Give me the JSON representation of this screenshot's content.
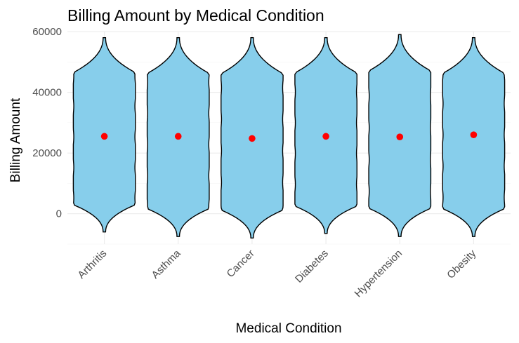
{
  "chart_data": {
    "type": "violin",
    "title": "Billing Amount by Medical Condition",
    "xlabel": "Medical Condition",
    "ylabel": "Billing Amount",
    "categories": [
      "Arthritis",
      "Asthma",
      "Cancer",
      "Diabetes",
      "Hypertension",
      "Obesity"
    ],
    "ylim": [
      -10000,
      60000
    ],
    "yticks": [
      0,
      20000,
      40000,
      60000
    ],
    "ytick_labels": [
      "0",
      "20000",
      "40000",
      "60000"
    ],
    "series": [
      {
        "category": "Arthritis",
        "min": -6000,
        "max": 58000,
        "mean": 25500
      },
      {
        "category": "Asthma",
        "min": -7500,
        "max": 58000,
        "mean": 25500
      },
      {
        "category": "Cancer",
        "min": -8000,
        "max": 58000,
        "mean": 24800
      },
      {
        "category": "Diabetes",
        "min": -6500,
        "max": 58000,
        "mean": 25500
      },
      {
        "category": "Hypertension",
        "min": -7500,
        "max": 59000,
        "mean": 25300
      },
      {
        "category": "Obesity",
        "min": -7500,
        "max": 58000,
        "mean": 26000
      }
    ],
    "fill_color": "#87CEEB",
    "mean_color": "#FF0000",
    "grid": true,
    "legend": "none"
  }
}
